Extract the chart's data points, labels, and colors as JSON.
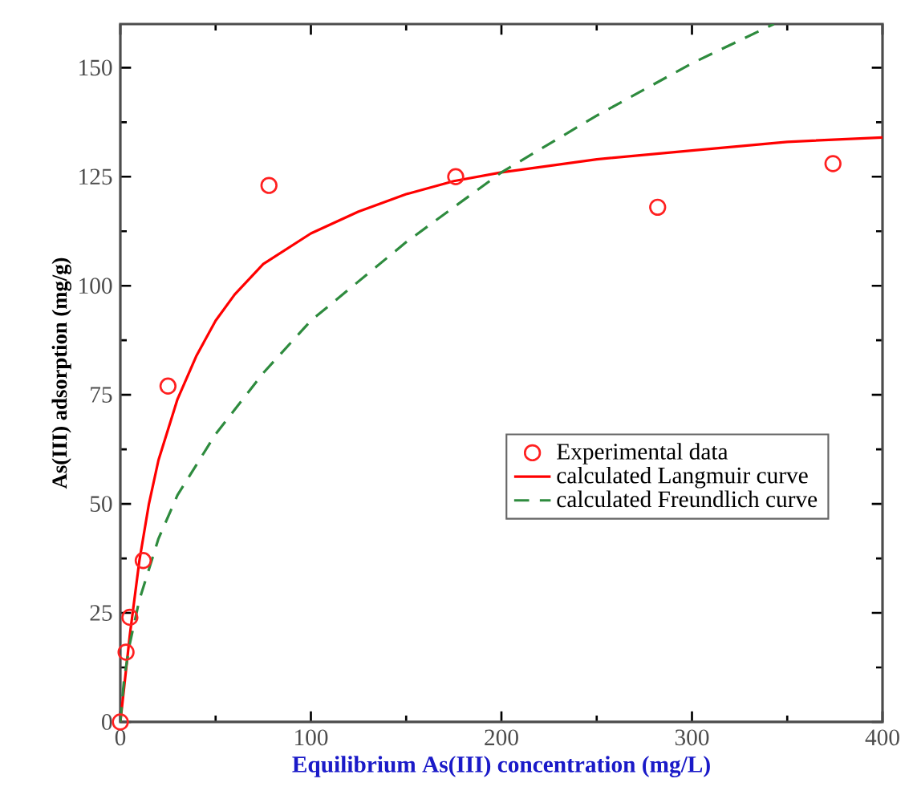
{
  "chart_data": {
    "type": "line",
    "xlabel": "Equilibrium As(III) concentration (mg/L)",
    "ylabel": "As(III) adsorption (mg/g)",
    "xlim": [
      0,
      400
    ],
    "ylim": [
      0,
      160
    ],
    "xticks": [
      0,
      100,
      200,
      300,
      400
    ],
    "yticks": [
      0,
      25,
      50,
      75,
      100,
      125,
      150
    ],
    "legend": "right",
    "grid": false,
    "series": [
      {
        "name": "Experimental data",
        "type": "scatter",
        "marker": "circle",
        "color": "#ff2020",
        "x": [
          0,
          3,
          5,
          12,
          25,
          78,
          176,
          282,
          374
        ],
        "values": [
          0,
          16,
          24,
          37,
          77,
          123,
          125,
          118,
          128
        ]
      },
      {
        "name": "calculated Langmuir curve",
        "line_style": "solid",
        "color": "#ff0000",
        "x": [
          0,
          2,
          5,
          10,
          15,
          20,
          30,
          40,
          50,
          60,
          75,
          100,
          125,
          150,
          175,
          200,
          250,
          300,
          350,
          400
        ],
        "values": [
          0,
          8,
          20,
          37,
          50,
          60,
          74,
          84,
          92,
          98,
          105,
          112,
          117,
          121,
          124,
          126,
          129,
          131,
          133,
          134
        ]
      },
      {
        "name": "calculated Freundlich curve",
        "line_style": "dashed",
        "color": "#2e8b3e",
        "x": [
          0,
          2,
          5,
          10,
          20,
          30,
          50,
          75,
          100,
          150,
          200,
          250,
          300,
          343
        ],
        "values": [
          0,
          10,
          18,
          28,
          42,
          52,
          66,
          80,
          92,
          110,
          126,
          139,
          151,
          160
        ]
      }
    ]
  }
}
